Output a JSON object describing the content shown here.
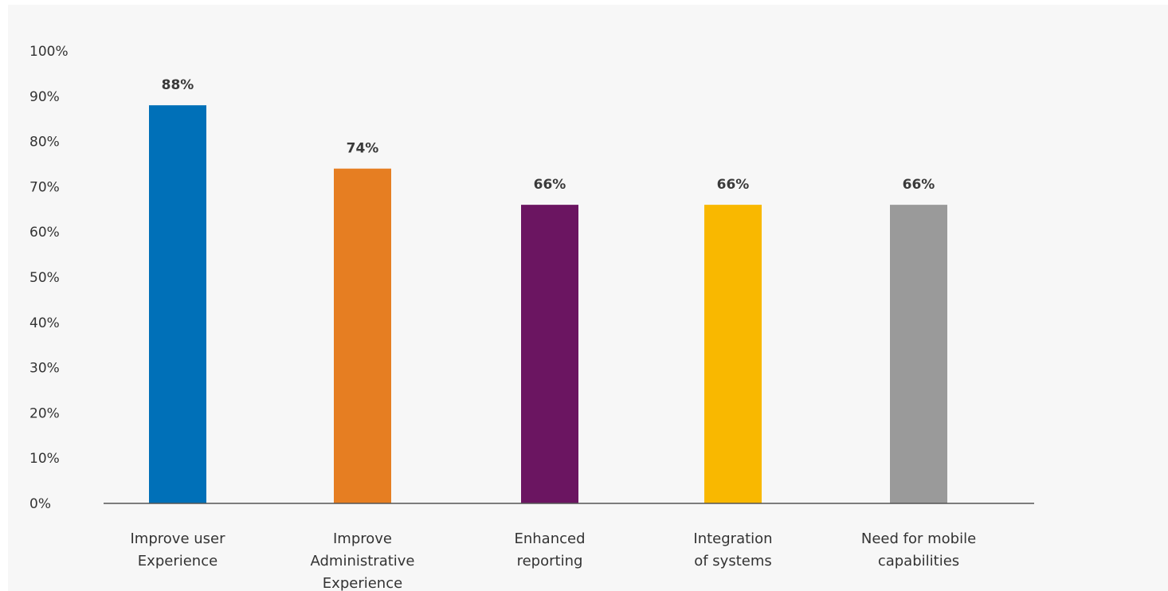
{
  "chart_data": {
    "type": "bar",
    "title": "",
    "xlabel": "",
    "ylabel": "",
    "ylim": [
      0,
      100
    ],
    "y_ticks": [
      "0%",
      "10%",
      "20%",
      "30%",
      "40%",
      "50%",
      "60%",
      "70%",
      "80%",
      "90%",
      "100%"
    ],
    "categories": [
      [
        "Improve user",
        "Experience"
      ],
      [
        "Improve",
        "Administrative",
        "Experience"
      ],
      [
        "Enhanced",
        "reporting"
      ],
      [
        "Integration",
        "of systems"
      ],
      [
        "Need for mobile",
        "capabilities"
      ]
    ],
    "values": [
      88,
      74,
      66,
      66,
      66
    ],
    "value_labels": [
      "88%",
      "74%",
      "66%",
      "66%",
      "66%"
    ],
    "colors": [
      "#0070b8",
      "#e67e22",
      "#6b1561",
      "#f9b800",
      "#9a9a9a"
    ],
    "grid": false,
    "legend": "none"
  }
}
